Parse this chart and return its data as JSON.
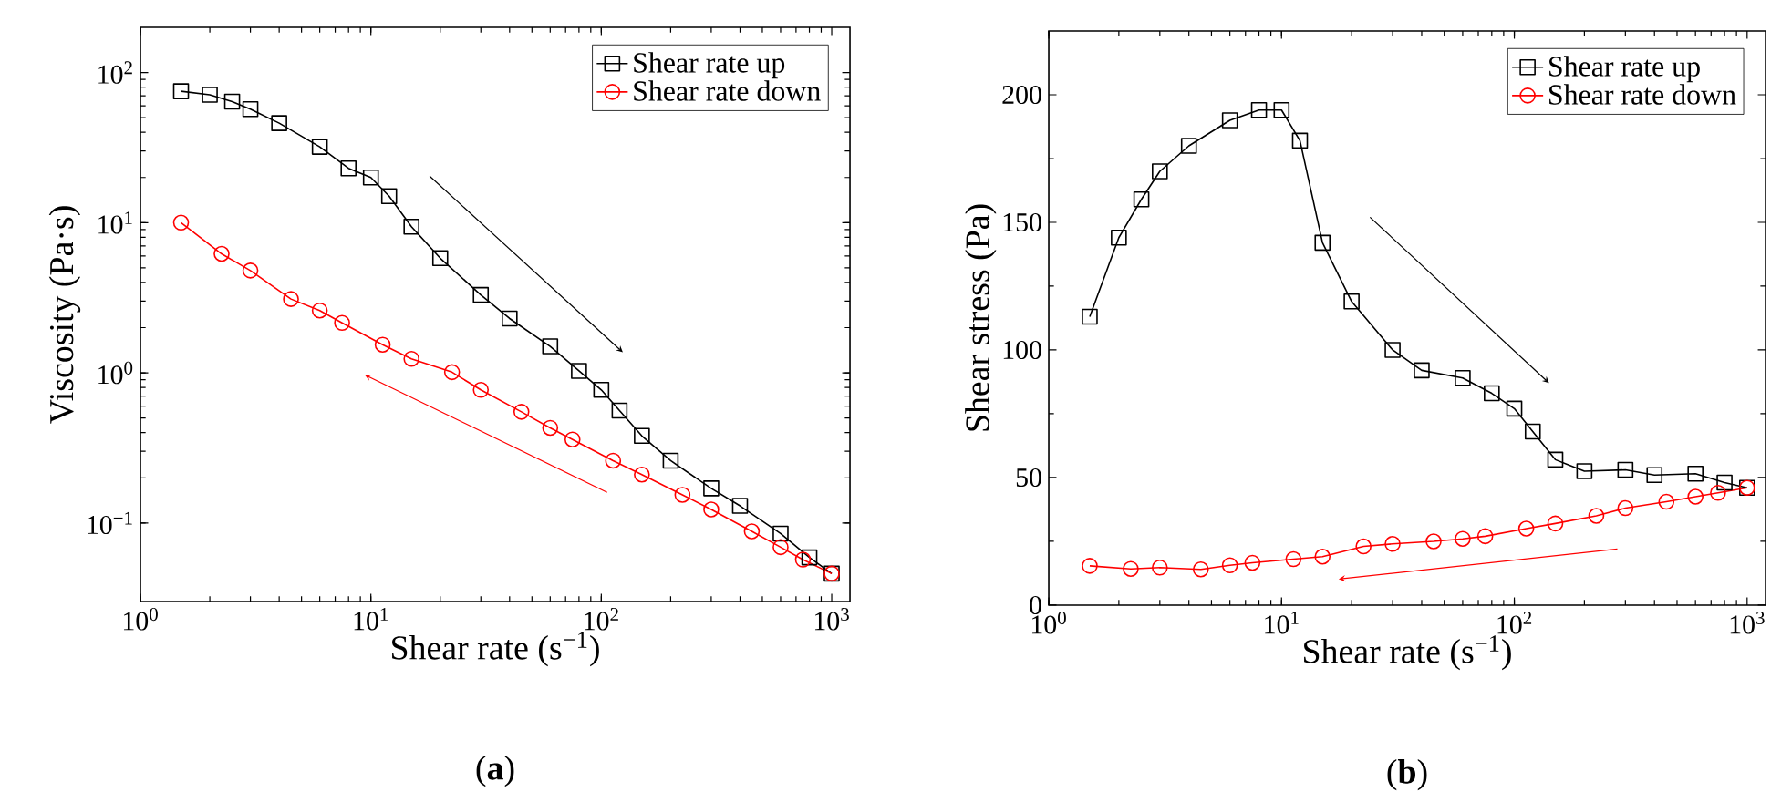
{
  "chart_data": [
    {
      "type": "line",
      "xlabel": "Shear rate (s$^{−1}$)",
      "ylabel": "Viscosity (Pa·s)",
      "log": "xy",
      "legend": "top right",
      "xlim": [
        1,
        1200
      ],
      "ylim": [
        0.03,
        200
      ],
      "xticks": [
        {
          "value": 1,
          "label": "10$^{0}$"
        },
        {
          "value": 10,
          "label": "10$^{1}$"
        },
        {
          "value": 100,
          "label": "10$^{2}$"
        },
        {
          "value": 1000,
          "label": "10$^{3}$"
        }
      ],
      "yticks": [
        {
          "value": 0.1,
          "label": "10$^{−1}$"
        },
        {
          "value": 1,
          "label": "10$^{0}$"
        },
        {
          "value": 10,
          "label": "10$^{1}$"
        },
        {
          "value": 100,
          "label": "10$^{2}$"
        }
      ],
      "annotations": [
        "(**a**)"
      ],
      "series": [
        {
          "name": "Shear rate up",
          "color": "#000000",
          "marker": "square",
          "x": [
            1.5,
            2,
            2.5,
            3,
            4,
            6,
            8,
            10,
            12,
            15,
            20,
            30,
            40,
            60,
            80,
            100,
            120,
            150,
            200,
            300,
            400,
            600,
            800,
            1000
          ],
          "values": [
            75,
            71,
            64,
            57,
            46,
            32,
            23,
            20,
            15,
            9.4,
            5.8,
            3.3,
            2.3,
            1.5,
            1.03,
            0.77,
            0.56,
            0.38,
            0.26,
            0.17,
            0.13,
            0.085,
            0.059,
            0.046
          ]
        },
        {
          "name": "Shear rate down",
          "color": "#ff0000",
          "marker": "circle",
          "x": [
            1.5,
            2.25,
            3,
            4.5,
            6,
            7.5,
            11.25,
            15,
            22.5,
            30,
            45,
            60,
            75,
            112.5,
            150,
            225,
            300,
            450,
            600,
            750,
            1000
          ],
          "values": [
            10,
            6.2,
            4.8,
            3.1,
            2.6,
            2.15,
            1.54,
            1.24,
            1.01,
            0.77,
            0.55,
            0.43,
            0.36,
            0.26,
            0.21,
            0.154,
            0.123,
            0.088,
            0.069,
            0.057,
            0.046
          ]
        }
      ]
    },
    {
      "type": "line",
      "xlabel": "Shear rate (s$^{−1}$)",
      "ylabel": "Shear stress (Pa)",
      "log": "x",
      "legend": "top right",
      "xlim": [
        1,
        1200
      ],
      "ylim": [
        0,
        225
      ],
      "xticks": [
        {
          "value": 1,
          "label": "10$^{0}$"
        },
        {
          "value": 10,
          "label": "10$^{1}$"
        },
        {
          "value": 100,
          "label": "10$^{2}$"
        },
        {
          "value": 1000,
          "label": "10$^{3}$"
        }
      ],
      "yticks": [
        0,
        50,
        100,
        150,
        200
      ],
      "annotations": [
        "(**b**)"
      ],
      "series": [
        {
          "name": "Shear rate up",
          "color": "#000000",
          "marker": "square",
          "x": [
            1.5,
            2,
            2.5,
            3,
            4,
            6,
            8,
            10,
            12,
            15,
            20,
            30,
            40,
            60,
            80,
            100,
            120,
            150,
            200,
            300,
            400,
            600,
            800,
            1000
          ],
          "values": [
            113,
            144,
            159,
            170,
            180,
            190,
            194,
            194,
            182,
            142,
            119,
            100,
            92,
            89,
            83,
            77,
            68,
            57,
            52.5,
            53,
            51,
            51.5,
            48,
            46
          ]
        },
        {
          "name": "Shear rate down",
          "color": "#ff0000",
          "marker": "circle",
          "x": [
            1.5,
            2.25,
            3,
            4.5,
            6,
            7.5,
            11.25,
            15,
            22.5,
            30,
            45,
            60,
            75,
            112.5,
            150,
            225,
            300,
            450,
            600,
            750,
            1000
          ],
          "values": [
            15.4,
            14.2,
            14.7,
            14,
            15.6,
            16.6,
            18,
            19,
            23,
            24,
            25,
            26,
            27,
            30,
            32,
            35,
            38,
            40.5,
            42.5,
            44,
            46
          ]
        }
      ]
    }
  ]
}
